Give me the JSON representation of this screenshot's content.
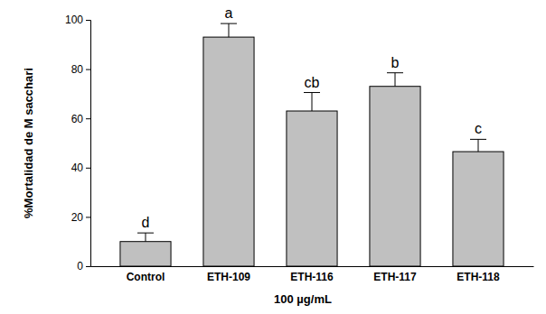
{
  "chart_data": {
    "type": "bar",
    "categories": [
      "Control",
      "ETH-109",
      "ETH-116",
      "ETH-117",
      "ETH-118"
    ],
    "values": [
      10,
      93,
      63,
      73,
      46.5
    ],
    "errors": [
      3.5,
      5.5,
      7.5,
      5.5,
      5
    ],
    "annotations": [
      "d",
      "a",
      "cb",
      "b",
      "c"
    ],
    "color": "#c0c0c0",
    "y_label": "%Mortalidad de M sacchari",
    "x_label": "100 µg/mL",
    "ylim": [
      0,
      100
    ],
    "yticks": [
      0,
      20,
      40,
      60,
      80,
      100
    ],
    "grid": false
  }
}
